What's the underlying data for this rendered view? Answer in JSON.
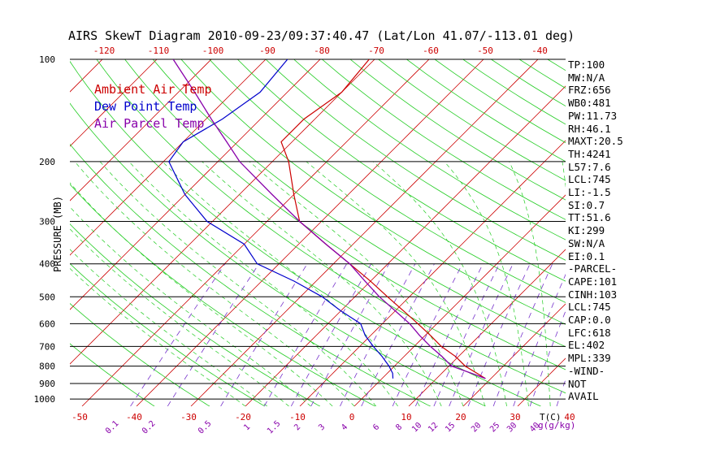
{
  "title": "AIRS SkewT Diagram 2010-09-23/09:37:40.47 (Lat/Lon 41.07/-113.01 deg)",
  "legend": [
    {
      "label": "Ambient Air Temp",
      "color": "#cc0000"
    },
    {
      "label": "Dew Point Temp",
      "color": "#0000cc"
    },
    {
      "label": "Air Parcel Temp",
      "color": "#8800aa"
    }
  ],
  "stats": [
    "TP:100",
    "MW:N/A",
    "FRZ:656",
    "WB0:481",
    "PW:11.73",
    "RH:46.1",
    "MAXT:20.5",
    "TH:4241",
    "L57:7.6",
    "LCL:745",
    "LI:-1.5",
    "SI:0.7",
    "TT:51.6",
    "KI:299",
    "SW:N/A",
    "EI:0.1",
    "-PARCEL-",
    "CAPE:101",
    "CINH:103",
    "LCL:745",
    "CAP:0.0",
    "LFC:618",
    "EL:402",
    "MPL:339",
    "-WIND-",
    "NOT",
    "AVAIL"
  ],
  "chart_data": {
    "type": "line",
    "title": "AIRS SkewT Diagram 2010-09-23/09:37:40.47 (Lat/Lon 41.07/-113.01 deg)",
    "ylabel": "PRESSURE (MB)",
    "xlabel": "T(C)",
    "y_scale": "log",
    "ylim": [
      1000,
      100
    ],
    "y_ticks": [
      "100",
      "200",
      "300",
      "400",
      "500",
      "600",
      "700",
      "800",
      "900",
      "1000"
    ],
    "x_ticks_bottom": [
      "-50",
      "-40",
      "-30",
      "-20",
      "-10",
      "0",
      "10",
      "20",
      "30",
      "40"
    ],
    "x_ticks_top": [
      "-120",
      "-110",
      "-100",
      "-90",
      "-80",
      "-70",
      "-60",
      "-50",
      "-40"
    ],
    "mixing_ratio_label": "g(g/kg)",
    "mixing_ratio_labels": [
      "0.1",
      "0.2",
      "0.5",
      "1",
      "1.5",
      "2",
      "3",
      "4",
      "6",
      "8",
      "10",
      "12",
      "15",
      "20",
      "25",
      "30",
      "40"
    ],
    "series": [
      {
        "name": "Ambient Air Temp",
        "color": "#cc0000",
        "pressure": [
          870,
          840,
          800,
          750,
          700,
          650,
          600,
          550,
          500,
          450,
          400,
          350,
          300,
          250,
          200,
          175,
          150,
          125,
          100
        ],
        "temp": [
          19,
          16.5,
          13,
          9.5,
          5,
          1,
          -3.5,
          -8.5,
          -14,
          -20,
          -27,
          -35,
          -44,
          -50,
          -57,
          -62,
          -62,
          -60,
          -61
        ]
      },
      {
        "name": "Dew Point Temp",
        "color": "#0000cc",
        "pressure": [
          870,
          840,
          800,
          750,
          700,
          650,
          600,
          550,
          500,
          450,
          400,
          350,
          300,
          250,
          200,
          175,
          150,
          125,
          100
        ],
        "temp": [
          2,
          1,
          -1,
          -4,
          -7.5,
          -11,
          -14,
          -20,
          -26,
          -34,
          -44,
          -50,
          -61,
          -70,
          -79,
          -80,
          -77,
          -75,
          -76
        ]
      },
      {
        "name": "Air Parcel Temp",
        "color": "#8800aa",
        "pressure": [
          870,
          840,
          800,
          750,
          700,
          650,
          600,
          550,
          500,
          450,
          400,
          350,
          300,
          250,
          200,
          175,
          150,
          125,
          100
        ],
        "temp": [
          19,
          15.5,
          10.5,
          7,
          3,
          -1,
          -5,
          -10,
          -15.5,
          -21,
          -27,
          -35,
          -44,
          -54,
          -66,
          -72,
          -79,
          -87,
          -97
        ]
      }
    ]
  }
}
